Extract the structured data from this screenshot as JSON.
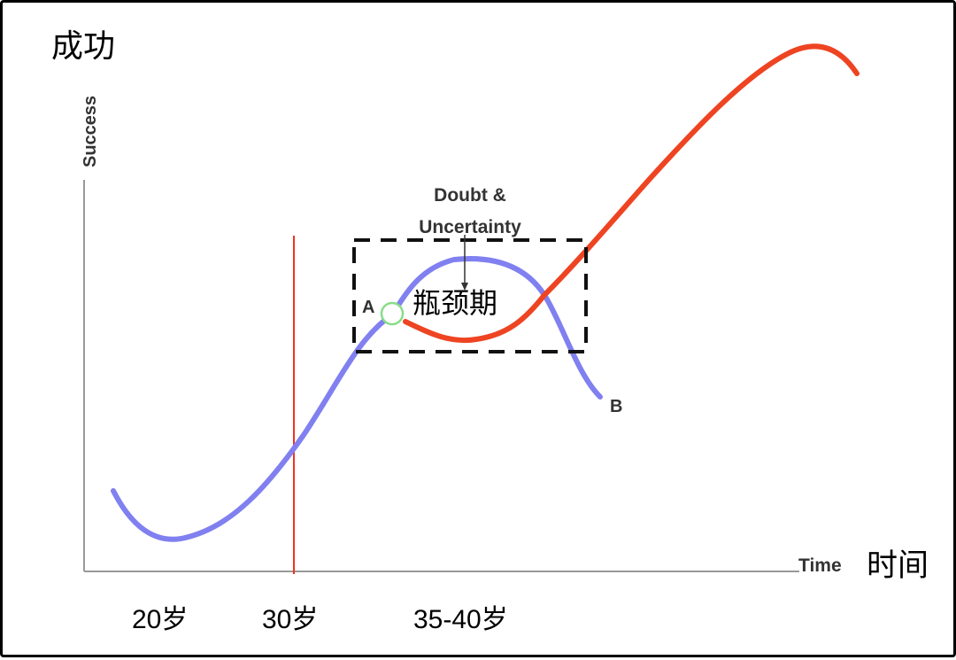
{
  "diagram": {
    "y_axis_label_cn": "成功",
    "y_axis_label_en": "Success",
    "x_axis_label_en": "Time",
    "x_axis_label_cn": "时间",
    "annotation_en_line1": "Doubt &",
    "annotation_en_line2": "Uncertainty",
    "annotation_cn": "瓶颈期",
    "point_a_label": "A",
    "point_b_label": "B",
    "age_labels": [
      "20岁",
      "30岁",
      "35-40岁"
    ],
    "colors": {
      "blue_curve": "#8080f0",
      "red_curve": "#ee4422",
      "marker_line": "#ee3322",
      "axis": "#999999",
      "dashed_box": "#111111",
      "point_a_circle": "#88dd88"
    }
  }
}
